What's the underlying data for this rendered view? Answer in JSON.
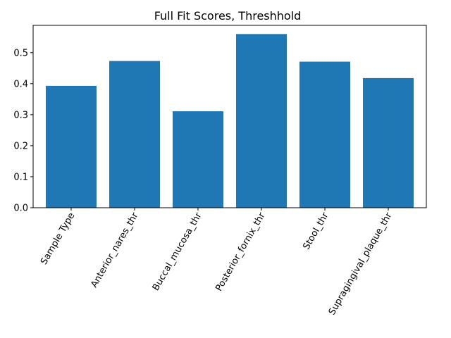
{
  "chart_data": {
    "type": "bar",
    "title": "Full Fit Scores, Threshhold",
    "xlabel": "",
    "ylabel": "",
    "categories": [
      "Sample Type",
      "Anterior_nares_thr",
      "Buccal_mucosa_thr",
      "Posterior_fornix_thr",
      "Stool_thr",
      "Supragingival_plaque_thr"
    ],
    "values": [
      0.393,
      0.473,
      0.311,
      0.56,
      0.471,
      0.418
    ],
    "ylim": [
      0,
      0.588
    ],
    "yticks": [
      "0.0",
      "0.1",
      "0.2",
      "0.3",
      "0.4",
      "0.5"
    ],
    "bar_color": "#1f77b4",
    "grid": false,
    "legend": "none"
  }
}
